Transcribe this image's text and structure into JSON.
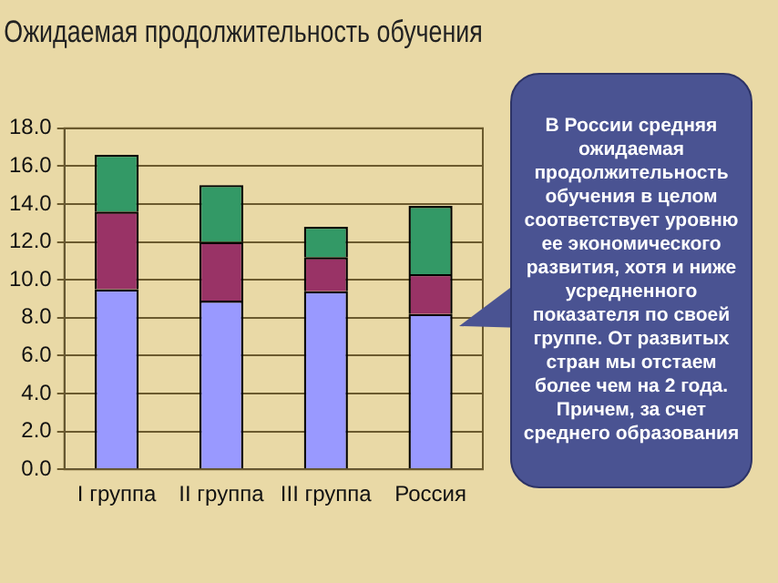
{
  "chart_data": {
    "type": "bar",
    "title": "Ожидаемая продолжительность обучения",
    "categories": [
      "I группа",
      "II группа",
      "III группа",
      "Россия"
    ],
    "stacked": true,
    "series": [
      {
        "color": "#9999ff",
        "values": [
          9.5,
          8.9,
          9.4,
          8.2
        ]
      },
      {
        "color": "#993366",
        "values": [
          4.1,
          3.1,
          1.8,
          2.1
        ]
      },
      {
        "color": "#339966",
        "values": [
          3.0,
          3.0,
          1.6,
          3.6
        ]
      }
    ],
    "ylim": [
      0,
      18
    ],
    "yticks": [
      {
        "value": 0,
        "label": "0.0"
      },
      {
        "value": 2,
        "label": "2.0"
      },
      {
        "value": 4,
        "label": "4.0"
      },
      {
        "value": 6,
        "label": "6.0"
      },
      {
        "value": 8,
        "label": "8.0"
      },
      {
        "value": 10,
        "label": "10.0"
      },
      {
        "value": 12,
        "label": "12.0"
      },
      {
        "value": 14,
        "label": "14.0"
      },
      {
        "value": 16,
        "label": "16.0"
      },
      {
        "value": 18,
        "label": "18.0"
      }
    ],
    "grid": "y",
    "legend": false,
    "annotations": [
      "В России средняя ожидаемая продолжительность обучения в целом соответствует уровню ее экономического развития, хотя и ниже усредненного показателя по своей группе. От развитых стран мы отстаем более чем на 2 года. Причем, за счет среднего образования"
    ]
  }
}
